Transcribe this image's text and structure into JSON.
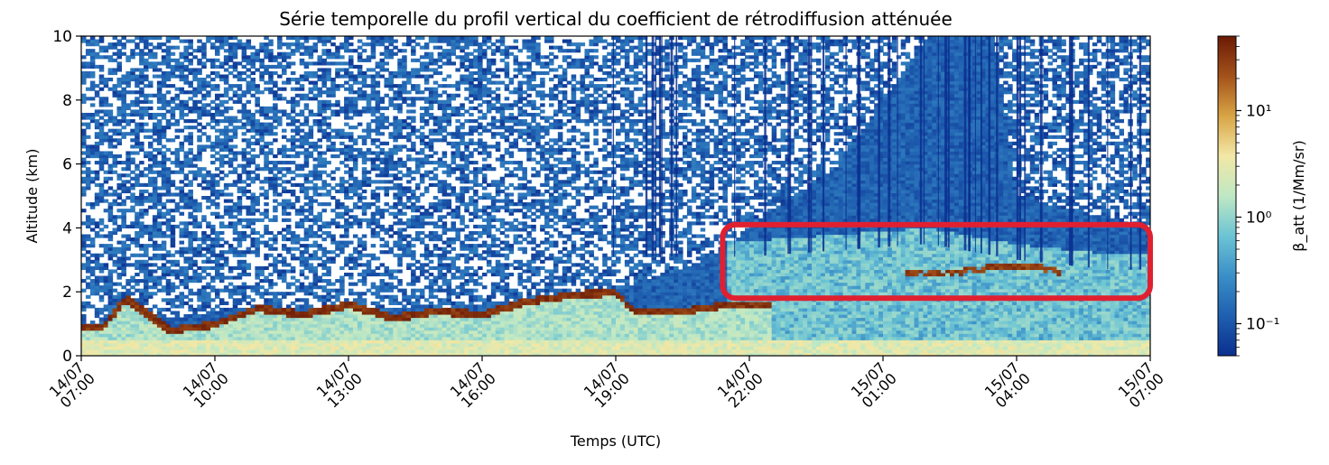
{
  "chart_data": {
    "type": "heatmap",
    "title": "Série temporelle du profil vertical du coefficient de rétrodiffusion atténuée",
    "xlabel": "Temps (UTC)",
    "ylabel": "Altitude (km)",
    "xlim_hours": [
      0,
      24
    ],
    "ylim": [
      0,
      10
    ],
    "x_ticks": [
      {
        "hour": 0,
        "date": "14/07",
        "time": "07:00"
      },
      {
        "hour": 3,
        "date": "14/07",
        "time": "10:00"
      },
      {
        "hour": 6,
        "date": "14/07",
        "time": "13:00"
      },
      {
        "hour": 9,
        "date": "14/07",
        "time": "16:00"
      },
      {
        "hour": 12,
        "date": "14/07",
        "time": "19:00"
      },
      {
        "hour": 15,
        "date": "14/07",
        "time": "22:00"
      },
      {
        "hour": 18,
        "date": "15/07",
        "time": "01:00"
      },
      {
        "hour": 21,
        "date": "15/07",
        "time": "04:00"
      },
      {
        "hour": 24,
        "date": "15/07",
        "time": "07:00"
      }
    ],
    "y_ticks": [
      0,
      2,
      4,
      6,
      8,
      10
    ],
    "colorbar": {
      "label": "β_att (1/Mm/sr)",
      "scale": "log",
      "range": [
        0.05,
        50
      ],
      "ticks": [
        {
          "value": 0.1,
          "label": "10⁻¹"
        },
        {
          "value": 1,
          "label": "10⁰"
        },
        {
          "value": 10,
          "label": "10¹"
        }
      ],
      "colors": [
        "#0b2f8f",
        "#1f5fb0",
        "#3a8fc8",
        "#6cc4d4",
        "#bfe8c4",
        "#f2e8a6",
        "#d9a445",
        "#a3521a",
        "#6b1a06"
      ]
    },
    "cloud_layer_km": [
      [
        0.0,
        0.9
      ],
      [
        0.5,
        0.9
      ],
      [
        1.0,
        1.8
      ],
      [
        2.0,
        0.8
      ],
      [
        3.0,
        1.0
      ],
      [
        4.0,
        1.5
      ],
      [
        5.0,
        1.3
      ],
      [
        6.0,
        1.6
      ],
      [
        7.0,
        1.2
      ],
      [
        8.0,
        1.4
      ],
      [
        9.0,
        1.3
      ],
      [
        10.0,
        1.7
      ],
      [
        11.0,
        1.9
      ],
      [
        12.0,
        2.0
      ],
      [
        12.4,
        1.4
      ],
      [
        13.5,
        1.4
      ],
      [
        14.5,
        1.6
      ],
      [
        15.5,
        1.6
      ]
    ],
    "elevated_layer_km": [
      [
        18.5,
        2.6
      ],
      [
        19.5,
        2.6
      ],
      [
        20.5,
        2.8
      ],
      [
        21.5,
        2.8
      ],
      [
        22.0,
        2.6
      ]
    ],
    "upper_aerosol_layer_km": [
      [
        15.0,
        3.6
      ],
      [
        17.0,
        3.8
      ],
      [
        19.0,
        4.0
      ],
      [
        21.0,
        3.5
      ],
      [
        23.0,
        3.2
      ]
    ],
    "noise_ceiling_km": [
      [
        0.0,
        1.0
      ],
      [
        2.0,
        1.2
      ],
      [
        4.0,
        1.6
      ],
      [
        6.0,
        1.4
      ],
      [
        8.0,
        1.5
      ],
      [
        10.0,
        1.8
      ],
      [
        12.0,
        2.1
      ],
      [
        13.0,
        2.5
      ],
      [
        14.0,
        3.0
      ],
      [
        15.0,
        4.0
      ],
      [
        17.0,
        6.0
      ],
      [
        19.0,
        10.0
      ],
      [
        20.5,
        10.0
      ],
      [
        21.0,
        5.0
      ],
      [
        24.0,
        4.0
      ]
    ],
    "highlight_box": {
      "x": [
        14.4,
        24.0
      ],
      "y": [
        1.8,
        4.1
      ],
      "color": "#e02030"
    }
  }
}
